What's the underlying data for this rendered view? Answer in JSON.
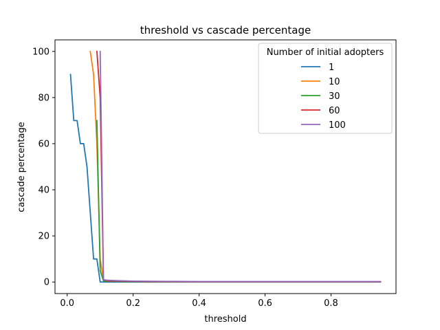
{
  "chart_data": {
    "type": "line",
    "title": "threshold vs cascade percentage",
    "xlabel": "threshold",
    "ylabel": "cascade percentage",
    "xlim": [
      -0.037,
      0.997
    ],
    "ylim": [
      -5,
      105
    ],
    "xticks": [
      0.0,
      0.2,
      0.4,
      0.6,
      0.8
    ],
    "xtick_labels": [
      "0.0",
      "0.2",
      "0.4",
      "0.6",
      "0.8"
    ],
    "yticks": [
      0,
      20,
      40,
      60,
      80,
      100
    ],
    "ytick_labels": [
      "0",
      "20",
      "40",
      "60",
      "80",
      "100"
    ],
    "grid": false,
    "legend": {
      "title": "Number of initial adopters",
      "placement": "top-right"
    },
    "series": [
      {
        "name": "1",
        "color": "#1f77b4",
        "x": [
          0.01,
          0.02,
          0.03,
          0.04,
          0.05,
          0.06,
          0.07,
          0.08,
          0.09,
          0.1,
          0.11,
          0.12,
          0.2,
          0.3,
          0.4,
          0.5,
          0.6,
          0.7,
          0.8,
          0.95
        ],
        "y": [
          90,
          70,
          70,
          60,
          60,
          50,
          30,
          10,
          10,
          0,
          0,
          0,
          0,
          0,
          0,
          0,
          0,
          0,
          0,
          0
        ]
      },
      {
        "name": "10",
        "color": "#ff7f0e",
        "x": [
          0.07,
          0.08,
          0.09,
          0.1,
          0.11,
          0.12,
          0.2,
          0.3,
          0.4,
          0.5,
          0.6,
          0.7,
          0.8,
          0.95
        ],
        "y": [
          100,
          90,
          60,
          10,
          1,
          0.5,
          0.2,
          0.1,
          0.1,
          0.1,
          0.1,
          0.1,
          0.1,
          0.1
        ]
      },
      {
        "name": "30",
        "color": "#2ca02c",
        "x": [
          0.09,
          0.1,
          0.11,
          0.12,
          0.2,
          0.3,
          0.4,
          0.5,
          0.6,
          0.7,
          0.8,
          0.95
        ],
        "y": [
          70,
          5,
          0.5,
          0.3,
          0.2,
          0.1,
          0.1,
          0.1,
          0.1,
          0.1,
          0.1,
          0.1
        ]
      },
      {
        "name": "60",
        "color": "#d62728",
        "x": [
          0.09,
          0.1,
          0.11,
          0.12,
          0.2,
          0.3,
          0.4,
          0.5,
          0.6,
          0.7,
          0.8,
          0.95
        ],
        "y": [
          100,
          80,
          1,
          0.5,
          0.3,
          0.2,
          0.1,
          0.1,
          0.1,
          0.1,
          0.1,
          0.1
        ]
      },
      {
        "name": "100",
        "color": "#9467bd",
        "x": [
          0.1,
          0.11,
          0.12,
          0.15,
          0.2,
          0.3,
          0.4,
          0.5,
          0.6,
          0.7,
          0.8,
          0.95
        ],
        "y": [
          100,
          1,
          0.8,
          0.6,
          0.4,
          0.3,
          0.2,
          0.2,
          0.2,
          0.2,
          0.2,
          0.2
        ]
      }
    ]
  }
}
